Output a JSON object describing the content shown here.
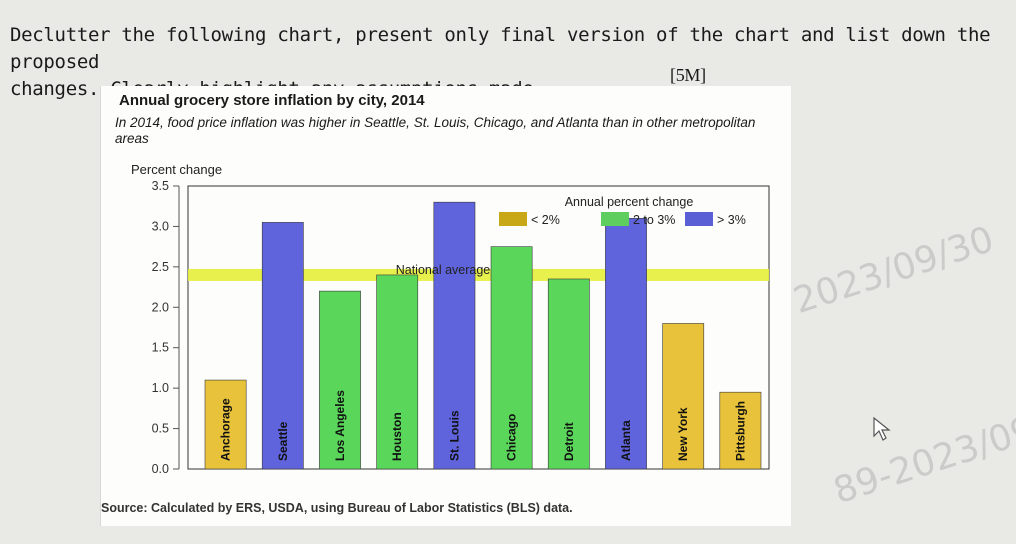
{
  "question": {
    "line1": "Declutter the following chart, present only final version of the chart and list down the proposed",
    "line2": "changes. Clearly highlight any assumptions made.",
    "marks": "[5M]"
  },
  "chart_data": {
    "type": "bar",
    "title": "Annual grocery store inflation by city, 2014",
    "subtitle": "In 2014, food price inflation was higher in Seattle, St. Louis, Chicago, and Atlanta than in other metropolitan areas",
    "ylabel": "Percent change",
    "xlabel": "",
    "ylim": [
      0,
      3.5
    ],
    "yticks": [
      "0.0",
      "0.5",
      "1.0",
      "1.5",
      "2.0",
      "2.5",
      "3.0",
      "3.5"
    ],
    "categories": [
      "Anchorage",
      "Seattle",
      "Los Angeles",
      "Houston",
      "St. Louis",
      "Chicago",
      "Detroit",
      "Atlanta",
      "New York",
      "Pittsburgh"
    ],
    "values": [
      1.1,
      3.05,
      2.2,
      2.4,
      3.3,
      2.75,
      2.35,
      3.1,
      1.8,
      0.95
    ],
    "bar_groups": [
      "<2%",
      ">3%",
      "2 to 3%",
      "2 to 3%",
      ">3%",
      "2 to 3%",
      "2 to 3%",
      ">3%",
      "<2%",
      "<2%"
    ],
    "national_average": 2.4,
    "national_average_label": "National average",
    "legend": {
      "title": "Annual percent change",
      "position": "top-right",
      "items": [
        {
          "label": "< 2%",
          "color": "#c9a817"
        },
        {
          "label": "2 to 3%",
          "color": "#5ecf5e"
        },
        {
          "label": "> 3%",
          "color": "#5b5fd6"
        }
      ]
    },
    "group_colors": {
      "<2%": "#e7c23a",
      "2 to 3%": "#5ad65a",
      ">3%": "#5f63dc"
    },
    "national_line_color": "#e4ee3a",
    "source": "Source: Calculated by ERS, USDA, using Bureau of Labor Statistics (BLS) data."
  }
}
